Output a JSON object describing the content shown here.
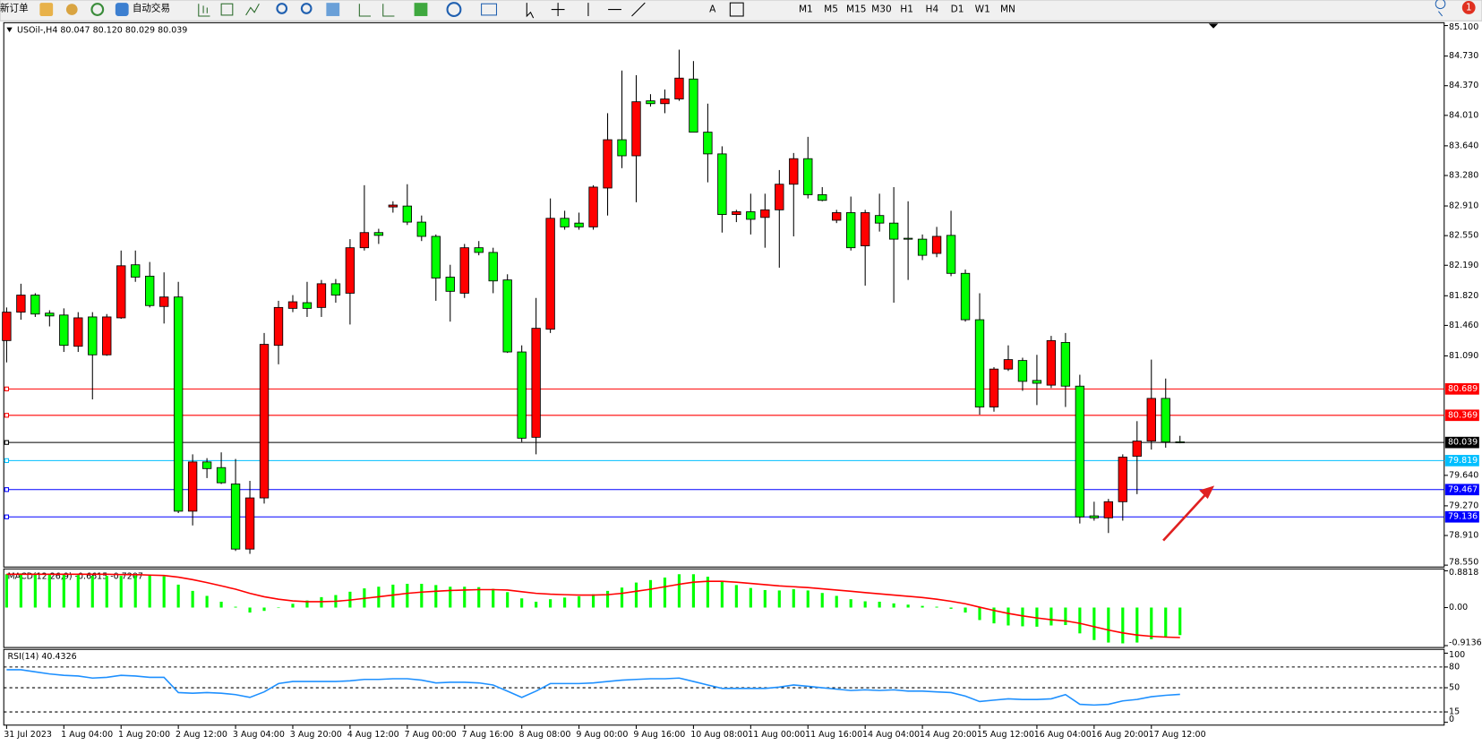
{
  "toolbar": {
    "new_order": "新订单",
    "auto_trading": "自动交易",
    "timeframes": [
      "M1",
      "M5",
      "M15",
      "M30",
      "H1",
      "H4",
      "D1",
      "W1",
      "MN"
    ],
    "notifications": "1"
  },
  "chart_data": [
    {
      "type": "candlestick",
      "title": "USOil-,H4 80.047 80.120 80.029 80.039",
      "categories": [
        "31 Jul 2023",
        null,
        null,
        null,
        "1 Aug 04:00",
        null,
        null,
        null,
        "1 Aug 20:00",
        null,
        null,
        null,
        "2 Aug 12:00",
        null,
        null,
        null,
        "3 Aug 04:00",
        null,
        null,
        null,
        "3 Aug 20:00",
        null,
        null,
        null,
        "4 Aug 12:00",
        null,
        null,
        null,
        "7 Aug 00:00",
        null,
        null,
        null,
        "7 Aug 16:00",
        null,
        null,
        null,
        "8 Aug 08:00",
        null,
        null,
        null,
        "9 Aug 00:00",
        null,
        null,
        null,
        "9 Aug 16:00",
        null,
        null,
        null,
        "10 Aug 08:00",
        null,
        null,
        null,
        "11 Aug 00:00",
        null,
        null,
        null,
        "11 Aug 16:00",
        null,
        null,
        null,
        "14 Aug 04:00",
        null,
        null,
        null,
        "14 Aug 20:00",
        null,
        null,
        null,
        "15 Aug 12:00",
        null,
        null,
        null,
        "16 Aug 04:00",
        null,
        null,
        null,
        "16 Aug 20:00",
        null,
        null,
        null,
        "17 Aug 12:00",
        null,
        null
      ],
      "open": [
        81.276,
        81.621,
        81.828,
        81.609,
        81.586,
        81.207,
        81.563,
        81.103,
        81.552,
        82.196,
        82.058,
        81.69,
        81.805,
        79.205,
        79.803,
        79.734,
        79.535,
        78.745,
        79.366,
        81.218,
        81.667,
        81.736,
        81.678,
        81.966,
        81.851,
        82.403,
        82.587,
        82.898,
        82.909,
        82.714,
        82.541,
        82.046,
        81.851,
        82.403,
        82.346,
        82.012,
        81.138,
        80.102,
        81.414,
        82.76,
        82.702,
        82.656,
        83.128,
        83.714,
        83.519,
        84.186,
        84.152,
        84.209,
        84.451,
        83.806,
        83.542,
        82.806,
        82.84,
        82.771,
        82.863,
        83.174,
        83.484,
        83.047,
        82.737,
        82.829,
        82.426,
        82.794,
        82.702,
        82.518,
        82.507,
        82.334,
        82.553,
        82.092,
        81.529,
        80.47,
        80.93,
        81.034,
        80.792,
        80.735,
        81.253,
        80.723,
        79.148,
        79.124,
        79.32,
        79.872,
        80.056,
        80.574,
        80.047
      ],
      "high": [
        81.678,
        81.966,
        81.851,
        81.644,
        81.667,
        81.621,
        81.621,
        81.598,
        82.369,
        82.369,
        82.23,
        82.104,
        81.989,
        79.895,
        79.849,
        79.919,
        79.839,
        79.573,
        81.368,
        81.759,
        81.828,
        81.989,
        82.012,
        82.023,
        82.507,
        83.162,
        82.633,
        82.967,
        83.174,
        82.794,
        82.564,
        82.196,
        82.449,
        82.484,
        82.403,
        82.081,
        81.218,
        81.793,
        83.001,
        82.852,
        82.829,
        83.162,
        84.036,
        84.554,
        84.497,
        84.267,
        84.324,
        84.807,
        84.669,
        84.152,
        83.634,
        82.863,
        83.059,
        83.059,
        83.346,
        83.553,
        83.749,
        83.139,
        82.863,
        83.024,
        82.863,
        83.059,
        83.139,
        82.967,
        82.564,
        82.656,
        82.852,
        82.138,
        81.851,
        80.953,
        81.218,
        81.068,
        81.103,
        81.333,
        81.368,
        80.861,
        79.32,
        79.354,
        79.895,
        80.298,
        81.045,
        80.815,
        80.12
      ],
      "low": [
        81.011,
        81.529,
        81.563,
        81.448,
        81.138,
        81.138,
        80.562,
        81.091,
        81.54,
        81.989,
        81.678,
        81.483,
        79.182,
        79.032,
        79.607,
        79.535,
        78.722,
        78.687,
        79.297,
        80.988,
        81.621,
        81.563,
        81.563,
        81.736,
        81.471,
        82.369,
        82.449,
        82.829,
        82.679,
        82.484,
        81.759,
        81.506,
        81.793,
        82.311,
        81.851,
        81.126,
        80.045,
        79.895,
        81.368,
        82.622,
        82.622,
        82.622,
        82.794,
        83.369,
        82.955,
        84.117,
        84.036,
        84.186,
        83.806,
        83.197,
        82.587,
        82.714,
        82.564,
        82.403,
        82.161,
        82.541,
        83.001,
        82.967,
        82.702,
        82.369,
        81.943,
        82.599,
        81.736,
        82.012,
        82.253,
        82.288,
        82.058,
        81.506,
        80.378,
        80.413,
        80.907,
        80.666,
        80.493,
        80.7,
        80.47,
        79.055,
        79.09,
        78.94,
        79.09,
        79.412,
        79.953,
        79.976,
        80.029
      ],
      "close": [
        81.621,
        81.828,
        81.598,
        81.575,
        81.218,
        81.552,
        81.103,
        81.563,
        82.184,
        82.046,
        81.701,
        81.805,
        79.205,
        79.803,
        79.722,
        79.55,
        78.745,
        79.366,
        81.23,
        81.678,
        81.747,
        81.667,
        81.966,
        81.828,
        82.403,
        82.587,
        82.553,
        82.921,
        82.714,
        82.541,
        82.035,
        81.874,
        82.403,
        82.346,
        82.0,
        81.138,
        80.091,
        81.425,
        82.76,
        82.656,
        82.656,
        83.139,
        83.714,
        83.519,
        84.175,
        84.152,
        84.209,
        84.462,
        83.806,
        83.542,
        82.806,
        82.84,
        82.748,
        82.863,
        83.174,
        83.484,
        83.047,
        82.978,
        82.829,
        82.403,
        82.829,
        82.702,
        82.507,
        82.507,
        82.311,
        82.541,
        82.092,
        81.529,
        80.47,
        80.93,
        81.045,
        80.781,
        80.758,
        81.276,
        80.723,
        79.136,
        79.124,
        79.32,
        79.861,
        80.056,
        80.574,
        80.045,
        80.039
      ],
      "up_color": "#ff0000",
      "down_color": "#00ff00",
      "ylim": [
        78.55,
        85.1
      ],
      "yticks": [
        {
          "value": 85.1,
          "label": "85.100"
        },
        {
          "value": 84.73,
          "label": "84.730"
        },
        {
          "value": 84.37,
          "label": "84.370"
        },
        {
          "value": 84.01,
          "label": "84.010"
        },
        {
          "value": 83.64,
          "label": "83.640"
        },
        {
          "value": 83.28,
          "label": "83.280"
        },
        {
          "value": 82.91,
          "label": "82.910"
        },
        {
          "value": 82.55,
          "label": "82.550"
        },
        {
          "value": 82.19,
          "label": "82.190"
        },
        {
          "value": 81.82,
          "label": "81.820"
        },
        {
          "value": 81.46,
          "label": "81.460"
        },
        {
          "value": 81.09,
          "label": "81.090"
        },
        {
          "value": 79.64,
          "label": "79.640"
        },
        {
          "value": 79.27,
          "label": "79.270"
        },
        {
          "value": 78.91,
          "label": "78.910"
        },
        {
          "value": 78.55,
          "label": "78.550"
        }
      ],
      "price_lines": [
        {
          "value": 80.689,
          "color": "#ff0000"
        },
        {
          "value": 80.369,
          "color": "#ff0000"
        },
        {
          "value": 80.039,
          "color": "#000000"
        },
        {
          "value": 79.819,
          "color": "#00bfff"
        },
        {
          "value": 79.467,
          "color": "#0000ff"
        },
        {
          "value": 79.136,
          "color": "#0000ff"
        }
      ]
    },
    {
      "type": "bar_line",
      "title": "MACD(12,26,9) -0.6615 -0.7207",
      "series": [
        {
          "style": "bar",
          "color": "#00ff00",
          "values": [
            0.8,
            0.82,
            0.82,
            0.8,
            0.79,
            0.78,
            0.76,
            0.76,
            0.76,
            0.77,
            0.77,
            0.75,
            0.55,
            0.4,
            0.28,
            0.14,
            0.02,
            -0.12,
            -0.08,
            0.0,
            0.09,
            0.17,
            0.25,
            0.3,
            0.38,
            0.46,
            0.5,
            0.55,
            0.57,
            0.57,
            0.54,
            0.5,
            0.5,
            0.49,
            0.45,
            0.37,
            0.22,
            0.14,
            0.2,
            0.24,
            0.27,
            0.32,
            0.4,
            0.48,
            0.6,
            0.66,
            0.72,
            0.8,
            0.8,
            0.74,
            0.62,
            0.54,
            0.47,
            0.42,
            0.41,
            0.44,
            0.41,
            0.35,
            0.28,
            0.2,
            0.15,
            0.14,
            0.1,
            0.07,
            0.04,
            0.02,
            -0.03,
            -0.12,
            -0.3,
            -0.38,
            -0.43,
            -0.45,
            -0.46,
            -0.43,
            -0.42,
            -0.62,
            -0.78,
            -0.84,
            -0.86,
            -0.84,
            -0.76,
            -0.7,
            -0.6615
          ]
        },
        {
          "style": "line",
          "color": "#ff0000",
          "values": [
            0.8,
            0.8,
            0.8,
            0.8,
            0.8,
            0.8,
            0.8,
            0.8,
            0.79,
            0.79,
            0.78,
            0.77,
            0.73,
            0.67,
            0.6,
            0.52,
            0.44,
            0.34,
            0.26,
            0.2,
            0.16,
            0.14,
            0.14,
            0.15,
            0.18,
            0.22,
            0.26,
            0.3,
            0.34,
            0.37,
            0.39,
            0.41,
            0.42,
            0.43,
            0.43,
            0.42,
            0.38,
            0.34,
            0.32,
            0.31,
            0.3,
            0.3,
            0.31,
            0.34,
            0.39,
            0.44,
            0.5,
            0.56,
            0.61,
            0.63,
            0.63,
            0.61,
            0.58,
            0.55,
            0.52,
            0.5,
            0.48,
            0.45,
            0.42,
            0.39,
            0.36,
            0.33,
            0.3,
            0.27,
            0.24,
            0.2,
            0.15,
            0.09,
            0.01,
            -0.07,
            -0.14,
            -0.2,
            -0.25,
            -0.29,
            -0.32,
            -0.38,
            -0.46,
            -0.54,
            -0.61,
            -0.66,
            -0.69,
            -0.71,
            -0.7207
          ]
        }
      ],
      "ylim": [
        -0.9136,
        0.8818
      ],
      "yticks": [
        0.8818,
        {
          "value": 0,
          "label": "0.00"
        },
        -0.9136
      ]
    },
    {
      "type": "line",
      "title": "RSI(14) 40.4326",
      "series": [
        {
          "color": "#1e90ff",
          "values": [
            76,
            76,
            73,
            70,
            68,
            67,
            64,
            65,
            68,
            67,
            65,
            65,
            43,
            42,
            43,
            42,
            40,
            36,
            44,
            56,
            59,
            59,
            59,
            59,
            60,
            62,
            62,
            63,
            63,
            61,
            57,
            58,
            58,
            57,
            54,
            45,
            36,
            45,
            56,
            56,
            56,
            57,
            59,
            61,
            62,
            63,
            63,
            64,
            59,
            54,
            49,
            49,
            49,
            49,
            51,
            54,
            52,
            50,
            48,
            46,
            47,
            46,
            47,
            45,
            45,
            44,
            43,
            38,
            30,
            32,
            34,
            33,
            33,
            34,
            40,
            26,
            25,
            26,
            31,
            33,
            37,
            39,
            40.4326
          ]
        }
      ],
      "ylim": [
        0,
        100
      ],
      "yticks": [
        100,
        80,
        50,
        15,
        0
      ],
      "levels": [
        80,
        50,
        15
      ]
    }
  ]
}
